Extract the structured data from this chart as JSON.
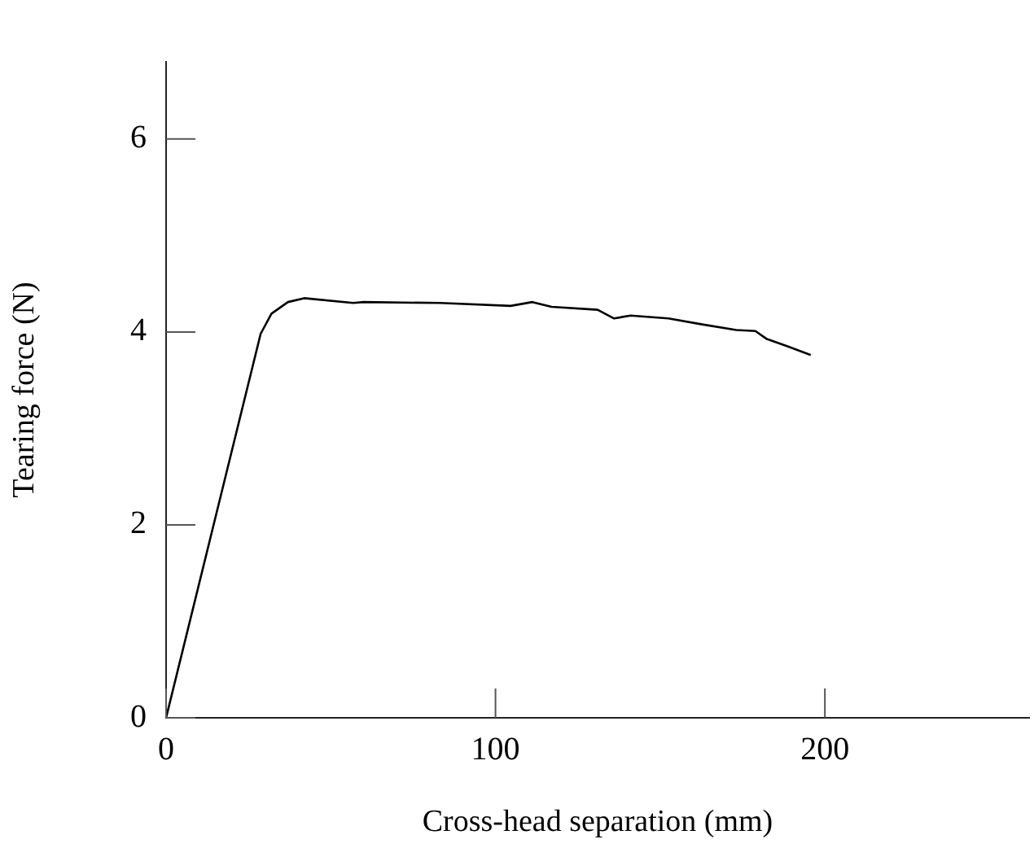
{
  "chart_data": {
    "type": "line",
    "xlabel": "Cross-head separation (mm)",
    "ylabel": "Tearing force (N)",
    "x": [
      0,
      28.7,
      32.0,
      37.0,
      41.9,
      56.8,
      60.0,
      83.2,
      104.6,
      111.2,
      117.0,
      131.0,
      136.0,
      141.0,
      152.5,
      162.4,
      173.1,
      178.9,
      182.2,
      188.8,
      195.7
    ],
    "series": [
      {
        "color": "#000000",
        "values": [
          0,
          3.98,
          4.19,
          4.31,
          4.35,
          4.3,
          4.31,
          4.3,
          4.27,
          4.31,
          4.26,
          4.23,
          4.14,
          4.17,
          4.14,
          4.08,
          4.02,
          4.01,
          3.93,
          3.85,
          3.76
        ]
      }
    ],
    "xlim": [
      0,
      262
    ],
    "ylim": [
      0,
      6.8
    ],
    "xticks": [
      0,
      100,
      200
    ],
    "yticks": [
      0,
      2,
      4,
      6
    ],
    "marker": "none",
    "line_style": "solid",
    "legend": false
  }
}
